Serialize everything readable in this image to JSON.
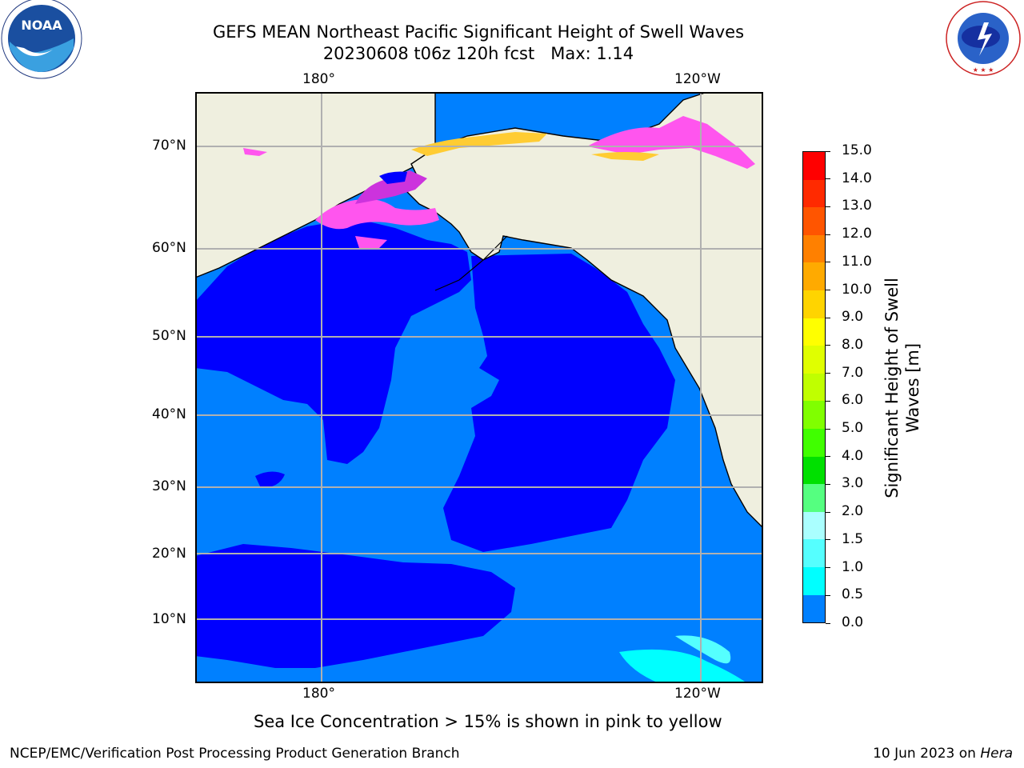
{
  "header": {
    "title": "GEFS MEAN Northeast Pacific Significant Height of Swell Waves",
    "subtitle": "20230608 t06z 120h fcst   Max: 1.14"
  },
  "logos": {
    "noaa": {
      "text": "NOAA",
      "ring_text": "NATIONAL OCEANIC AND ATMOSPHERIC ADMINISTRATION · U.S. DEPARTMENT OF COMMERCE"
    },
    "nws": {
      "ring_text": "NATIONAL WEATHER SERVICE"
    }
  },
  "map": {
    "lon_labels_top": [
      "180°",
      "120°W"
    ],
    "lon_labels_bottom": [
      "180°",
      "120°W"
    ],
    "lat_labels": [
      "70°N",
      "60°N",
      "50°N",
      "40°N",
      "30°N",
      "20°N",
      "10°N"
    ],
    "colors": {
      "land": "#efefdf",
      "deep_blue": "#0000ff",
      "mid_blue": "#0080ff",
      "cyan": "#00ffff",
      "ice_pink": "#ff55ee",
      "ice_yellow": "#ffcc33"
    }
  },
  "colorbar": {
    "label_line1": "Significant Height of Swell",
    "label_line2": "Waves [m]",
    "ticks": [
      "15.0",
      "14.0",
      "13.0",
      "12.0",
      "11.0",
      "10.0",
      "9.0",
      "8.0",
      "7.0",
      "6.0",
      "5.0",
      "4.0",
      "3.0",
      "2.0",
      "1.5",
      "1.0",
      "0.5",
      "0.0"
    ],
    "colors": [
      "#ff0000",
      "#ff2a00",
      "#ff5500",
      "#ff8000",
      "#ffaa00",
      "#ffd400",
      "#ffff00",
      "#e0ff00",
      "#c0ff00",
      "#80ff00",
      "#40ff00",
      "#00e000",
      "#55ff80",
      "#aaffff",
      "#55ffff",
      "#00ffff",
      "#0080ff",
      "#0000ff"
    ]
  },
  "note": "Sea Ice Concentration > 15% is shown in pink to yellow",
  "footer": {
    "left": "NCEP/EMC/Verification Post Processing Product Generation Branch",
    "right_prefix": "10 Jun 2023 on ",
    "right_host": "Hera"
  }
}
